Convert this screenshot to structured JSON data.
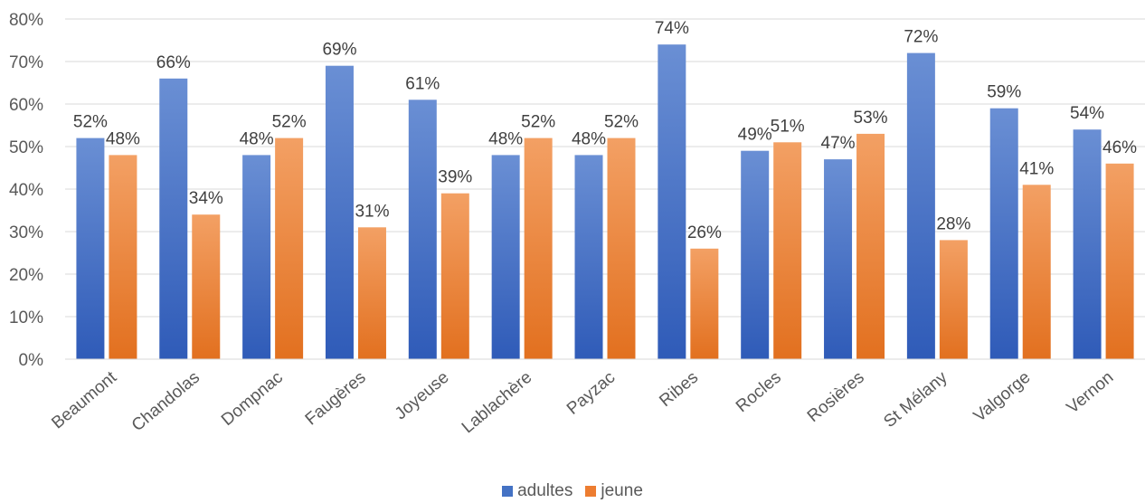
{
  "chart_data": {
    "type": "bar",
    "categories": [
      "Beaumont",
      "Chandolas",
      "Dompnac",
      "Faugères",
      "Joyeuse",
      "Lablachère",
      "Payzac",
      "Ribes",
      "Rocles",
      "Rosières",
      "St Mélany",
      "Valgorge",
      "Vernon"
    ],
    "series": [
      {
        "name": "adultes",
        "color": "#4472C4",
        "values": [
          52,
          66,
          48,
          69,
          61,
          48,
          48,
          74,
          49,
          47,
          72,
          59,
          54
        ],
        "labels": [
          "52%",
          "66%",
          "48%",
          "69%",
          "61%",
          "48%",
          "48%",
          "74%",
          "49%",
          "47%",
          "72%",
          "59%",
          "54%"
        ]
      },
      {
        "name": "jeune",
        "color": "#ED7D31",
        "values": [
          48,
          34,
          52,
          31,
          39,
          52,
          52,
          26,
          51,
          53,
          28,
          41,
          46
        ],
        "labels": [
          "48%",
          "34%",
          "52%",
          "31%",
          "39%",
          "52%",
          "52%",
          "26%",
          "51%",
          "53%",
          "28%",
          "41%",
          "46%"
        ]
      }
    ],
    "ylim": [
      0,
      80
    ],
    "yticks": [
      "0%",
      "10%",
      "20%",
      "30%",
      "40%",
      "50%",
      "60%",
      "70%",
      "80%"
    ],
    "grid": true,
    "legend_position": "bottom"
  }
}
